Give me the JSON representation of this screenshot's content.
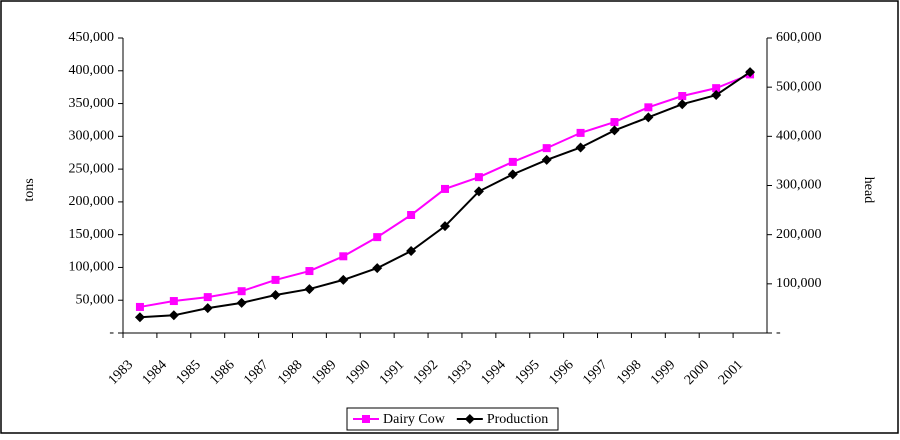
{
  "chart_data": {
    "type": "line",
    "categories": [
      "1983",
      "1984",
      "1985",
      "1986",
      "1987",
      "1988",
      "1989",
      "1990",
      "1991",
      "1992",
      "1993",
      "1994",
      "1995",
      "1996",
      "1997",
      "1998",
      "1999",
      "2000",
      "2001"
    ],
    "y_label": "tons",
    "y2_label": "head",
    "ylim": [
      0,
      450000
    ],
    "yticks": [
      {
        "value": 0,
        "label": "-"
      },
      {
        "value": 50000,
        "label": "50,000"
      },
      {
        "value": 100000,
        "label": "100,000"
      },
      {
        "value": 150000,
        "label": "150,000"
      },
      {
        "value": 200000,
        "label": "200,000"
      },
      {
        "value": 250000,
        "label": "250,000"
      },
      {
        "value": 300000,
        "label": "300,000"
      },
      {
        "value": 350000,
        "label": "350,000"
      },
      {
        "value": 400000,
        "label": "400,000"
      },
      {
        "value": 450000,
        "label": "450,000"
      }
    ],
    "y2lim": [
      0,
      600000
    ],
    "y2ticks": [
      {
        "value": 0,
        "label": "-"
      },
      {
        "value": 100000,
        "label": "100,000"
      },
      {
        "value": 200000,
        "label": "200,000"
      },
      {
        "value": 300000,
        "label": "300,000"
      },
      {
        "value": 400000,
        "label": "400,000"
      },
      {
        "value": 500000,
        "label": "500,000"
      },
      {
        "value": 600000,
        "label": "600,000"
      }
    ],
    "series": [
      {
        "name": "Dairy Cow",
        "color": "#ff00ff",
        "marker": "square",
        "axis": "y2",
        "values": [
          53000,
          65000,
          73000,
          85000,
          108000,
          126000,
          156000,
          195000,
          240000,
          293000,
          317000,
          348000,
          376000,
          407000,
          429000,
          459000,
          482000,
          498000,
          526000
        ]
      },
      {
        "name": "Production",
        "color": "#000000",
        "marker": "diamond",
        "values": [
          24000,
          27000,
          38000,
          46000,
          58000,
          67000,
          81000,
          99000,
          125000,
          163000,
          216000,
          242000,
          264000,
          283000,
          309000,
          329000,
          349000,
          363000,
          398000
        ]
      }
    ],
    "legend": "bottom"
  }
}
